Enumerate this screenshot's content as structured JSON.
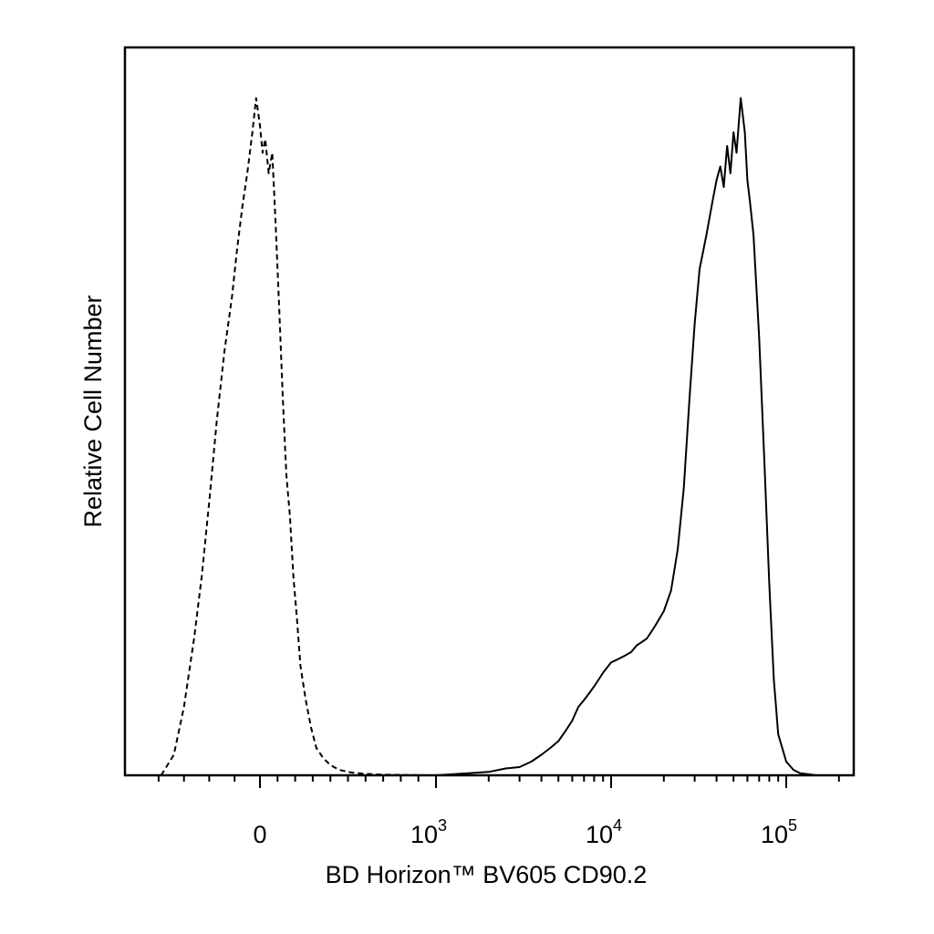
{
  "chart_data": {
    "type": "line",
    "title": "",
    "xlabel": "BD Horizon™ BV605 CD90.2",
    "ylabel": "Relative Cell Number",
    "x_scale": "biexponential",
    "xlim": [
      -450,
      250000
    ],
    "ylim": [
      0,
      100
    ],
    "grid": false,
    "legend": "none",
    "x_ticks": [
      {
        "value": 0,
        "base": "0",
        "exp": ""
      },
      {
        "value": 1000,
        "base": "10",
        "exp": "3"
      },
      {
        "value": 10000,
        "base": "10",
        "exp": "4"
      },
      {
        "value": 100000,
        "base": "10",
        "exp": "5"
      }
    ],
    "series": [
      {
        "style": "dashed",
        "x": [
          -390,
          -340,
          -300,
          -260,
          -230,
          -200,
          -170,
          -140,
          -110,
          -90,
          -70,
          -50,
          -30,
          -15,
          0,
          15,
          30,
          50,
          70,
          90,
          110,
          130,
          150,
          170,
          190,
          210,
          230,
          260,
          290,
          320,
          360,
          400,
          450,
          520,
          600,
          700,
          800,
          900,
          1000
        ],
        "y": [
          0,
          3,
          10,
          20,
          29,
          40,
          52,
          62,
          70,
          77,
          83,
          88,
          94,
          99,
          95,
          91,
          93,
          88,
          91,
          80,
          68,
          55,
          44,
          38,
          29,
          23,
          16,
          11,
          7,
          4,
          2.5,
          1.5,
          0.8,
          0.4,
          0.2,
          0.1,
          0.05,
          0.02,
          0
        ]
      },
      {
        "style": "solid",
        "x": [
          1000,
          2000,
          2500,
          3000,
          3500,
          4000,
          4500,
          5000,
          5500,
          6000,
          6500,
          7000,
          7500,
          8000,
          8500,
          9000,
          10000,
          11000,
          12000,
          13000,
          14000,
          15000,
          16000,
          17000,
          18000,
          20000,
          22000,
          24000,
          26000,
          28000,
          30000,
          32000,
          35000,
          38000,
          40000,
          42000,
          44000,
          46000,
          48000,
          50000,
          52000,
          55000,
          58000,
          60000,
          62000,
          65000,
          70000,
          75000,
          80000,
          85000,
          90000,
          100000,
          110000,
          120000,
          150000
        ],
        "y": [
          0,
          0.5,
          1,
          1.2,
          2,
          3,
          4,
          5,
          6.5,
          8,
          10,
          11,
          12,
          13,
          14,
          15,
          16.5,
          17,
          17.5,
          18,
          19,
          19.5,
          20,
          21,
          22,
          24,
          27,
          33,
          42,
          55,
          66,
          74,
          79,
          84,
          87,
          89,
          86,
          92,
          88,
          94,
          91,
          99,
          94,
          87,
          84,
          79,
          64,
          46,
          28,
          14,
          6,
          2,
          0.8,
          0.3,
          0
        ]
      }
    ]
  }
}
